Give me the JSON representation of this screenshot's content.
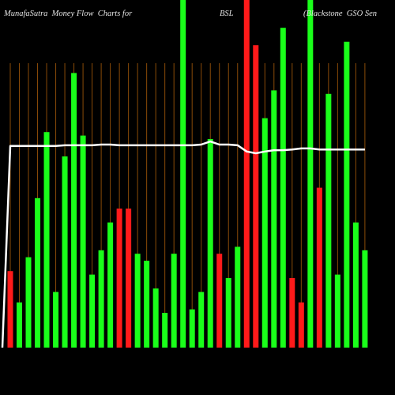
{
  "chart_data": {
    "type": "bar",
    "title": "MunafaSutra  Money Flow  Charts for",
    "symbol": "BSL",
    "subtitle": "(Blackstone  GSO Sen",
    "ylim": [
      0,
      100
    ],
    "grid": true,
    "grid_color": "#8a4b08",
    "background": "#000000",
    "line_color": "#ffffff",
    "series": [
      {
        "type": "bar",
        "values": [
          22,
          13,
          26,
          43,
          62,
          16,
          55,
          79,
          61,
          21,
          28,
          36,
          40,
          40,
          27,
          25,
          17,
          10,
          27,
          105,
          11,
          16,
          60,
          27,
          20,
          29,
          105,
          87,
          66,
          74,
          92,
          20,
          13,
          105,
          46,
          73,
          21,
          88,
          36,
          28
        ],
        "colors": [
          "#ff1a1a",
          "#1aff1a",
          "#1aff1a",
          "#1aff1a",
          "#1aff1a",
          "#1aff1a",
          "#1aff1a",
          "#1aff1a",
          "#1aff1a",
          "#1aff1a",
          "#1aff1a",
          "#1aff1a",
          "#ff1a1a",
          "#ff1a1a",
          "#1aff1a",
          "#1aff1a",
          "#1aff1a",
          "#1aff1a",
          "#1aff1a",
          "#1aff1a",
          "#1aff1a",
          "#1aff1a",
          "#1aff1a",
          "#ff1a1a",
          "#1aff1a",
          "#1aff1a",
          "#ff1a1a",
          "#ff1a1a",
          "#1aff1a",
          "#1aff1a",
          "#1aff1a",
          "#ff1a1a",
          "#ff1a1a",
          "#1aff1a",
          "#ff1a1a",
          "#1aff1a",
          "#1aff1a",
          "#1aff1a",
          "#1aff1a",
          "#1aff1a"
        ]
      },
      {
        "type": "line",
        "values": [
          0,
          58,
          58,
          58,
          58,
          58,
          58,
          58.2,
          58.2,
          58.2,
          58.2,
          58.4,
          58.4,
          58.2,
          58.2,
          58.2,
          58.2,
          58.2,
          58.2,
          58.2,
          58.2,
          58.2,
          58.4,
          59.3,
          58.4,
          58.4,
          58.2,
          56.4,
          55.9,
          56.4,
          56.8,
          56.8,
          57.0,
          57.3,
          57.3,
          57.0,
          57.0,
          57.0,
          57.0,
          57.0,
          57.0
        ]
      }
    ]
  }
}
